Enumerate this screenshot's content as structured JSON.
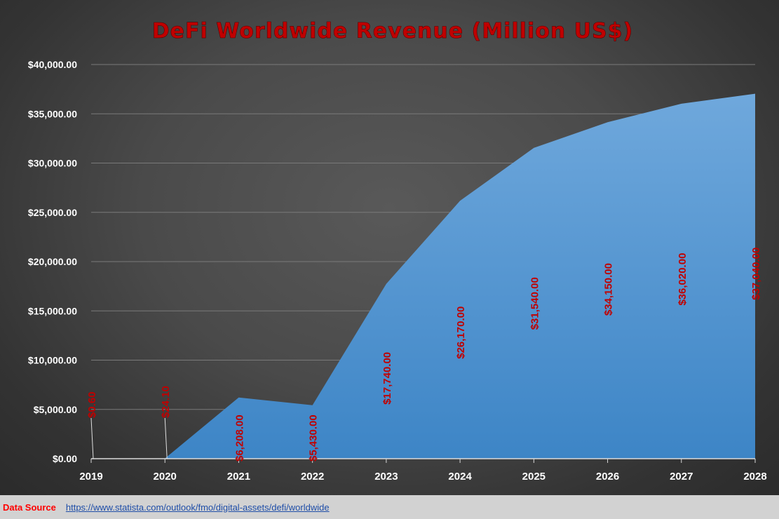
{
  "chart_data": {
    "type": "area",
    "title": "DeFi Worldwide Revenue (Million US$)",
    "categories": [
      "2019",
      "2020",
      "2021",
      "2022",
      "2023",
      "2024",
      "2025",
      "2026",
      "2027",
      "2028"
    ],
    "values": [
      0.6,
      24.1,
      6208.0,
      5430.0,
      17740.0,
      26170.0,
      31540.0,
      34150.0,
      36020.0,
      37040.0
    ],
    "data_labels": [
      "$0.60",
      "$24.10",
      "$6,208.00",
      "$5,430.00",
      "$17,740.00",
      "$26,170.00",
      "$31,540.00",
      "$34,150.00",
      "$36,020.00",
      "$37,040.00"
    ],
    "yticks": [
      "$0.00",
      "$5,000.00",
      "$10,000.00",
      "$15,000.00",
      "$20,000.00",
      "$25,000.00",
      "$30,000.00",
      "$35,000.00",
      "$40,000.00"
    ],
    "ylim": [
      0,
      40000
    ],
    "grid": true,
    "legend": false,
    "colors": {
      "area_top": "#6fa8dc",
      "area_bottom": "#3d85c6",
      "title": "#c00000",
      "label": "#c00000"
    }
  },
  "footer": {
    "source_label": "Data Source",
    "source_url": "https://www.statista.com/outlook/fmo/digital-assets/defi/worldwide"
  }
}
